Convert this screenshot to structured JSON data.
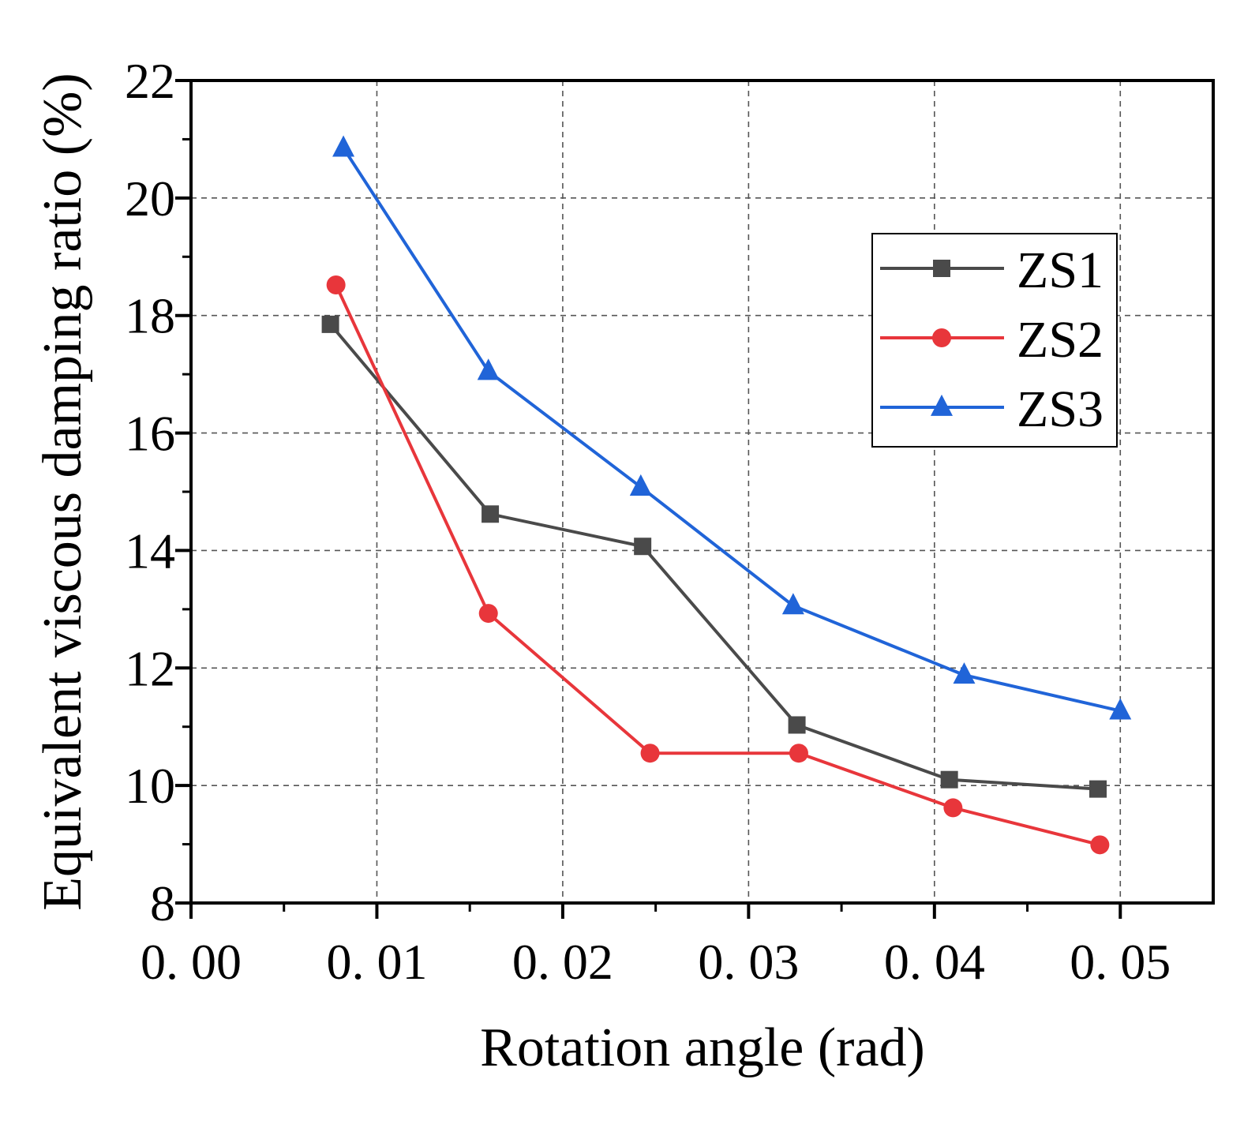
{
  "chart_data": {
    "type": "line",
    "title": "",
    "xlabel": "Rotation angle (rad)",
    "ylabel": "Equivalent viscous damping ratio (%)",
    "xlim": [
      0.0,
      0.055
    ],
    "ylim": [
      8,
      22
    ],
    "x_ticks": [
      {
        "value": 0.0,
        "label": "0. 00"
      },
      {
        "value": 0.01,
        "label": "0. 01"
      },
      {
        "value": 0.02,
        "label": "0. 02"
      },
      {
        "value": 0.03,
        "label": "0. 03"
      },
      {
        "value": 0.04,
        "label": "0. 04"
      },
      {
        "value": 0.05,
        "label": "0. 05"
      }
    ],
    "y_ticks": [
      {
        "value": 8,
        "label": "8"
      },
      {
        "value": 10,
        "label": "10"
      },
      {
        "value": 12,
        "label": "12"
      },
      {
        "value": 14,
        "label": "14"
      },
      {
        "value": 16,
        "label": "16"
      },
      {
        "value": 18,
        "label": "18"
      },
      {
        "value": 20,
        "label": "20"
      },
      {
        "value": 22,
        "label": "22"
      }
    ],
    "grid": true,
    "legend_position": "top-right",
    "series": [
      {
        "name": "ZS1",
        "color": "#4a4a4a",
        "marker": "square",
        "x": [
          0.0075,
          0.0161,
          0.0243,
          0.0326,
          0.0408,
          0.0488
        ],
        "y": [
          17.85,
          14.62,
          14.07,
          11.03,
          10.1,
          9.94
        ]
      },
      {
        "name": "ZS2",
        "color": "#e8363b",
        "marker": "circle",
        "x": [
          0.0078,
          0.016,
          0.0247,
          0.0327,
          0.041,
          0.0489
        ],
        "y": [
          18.52,
          12.93,
          10.55,
          10.55,
          9.62,
          8.99
        ]
      },
      {
        "name": "ZS3",
        "color": "#2064d8",
        "marker": "triangle",
        "x": [
          0.0082,
          0.016,
          0.0242,
          0.0324,
          0.0416,
          0.05
        ],
        "y": [
          20.85,
          17.05,
          15.08,
          13.06,
          11.88,
          11.27
        ]
      }
    ]
  }
}
